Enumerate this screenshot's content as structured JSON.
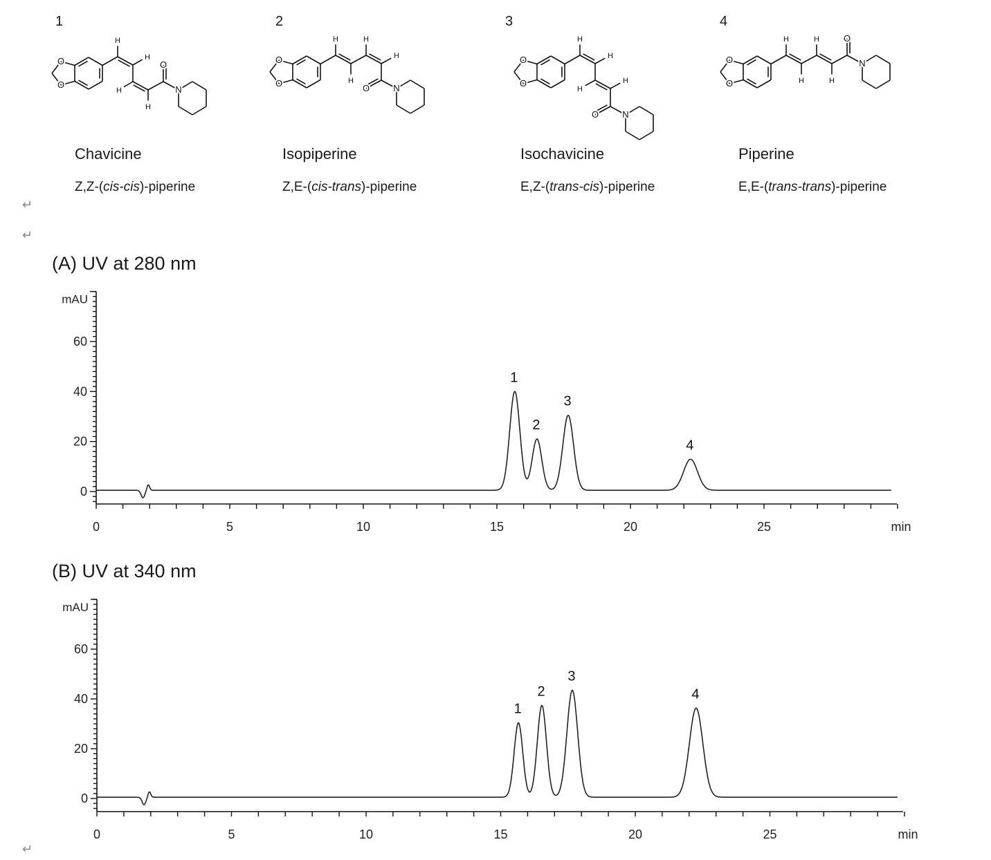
{
  "structure_atoms": {
    "oxygen": "O",
    "nitrogen": "N",
    "hydrogen": "H"
  },
  "compounds": [
    {
      "number": "1",
      "name": "Chavicine",
      "prefix": "Z,Z-(",
      "italic": "cis-cis",
      "suffix": ")-piperine"
    },
    {
      "number": "2",
      "name": "Isopiperine",
      "prefix": "Z,E-(",
      "italic": "cis-trans",
      "suffix": ")-piperine"
    },
    {
      "number": "3",
      "name": "Isochavicine",
      "prefix": "E,Z-(",
      "italic": "trans-cis",
      "suffix": ")-piperine"
    },
    {
      "number": "4",
      "name": "Piperine",
      "prefix": "E,E-(",
      "italic": "trans-trans",
      "suffix": ")-piperine"
    }
  ],
  "return_marks": [
    "↵",
    "↵",
    "↵"
  ],
  "chart_data": [
    {
      "type": "line",
      "title": "(A) UV at 280 nm",
      "ylabel": "mAU",
      "xlabel": "min",
      "xlim": [
        0,
        30
      ],
      "ylim": [
        -5,
        80
      ],
      "xticks": [
        "0",
        "5",
        "10",
        "15",
        "20",
        "25"
      ],
      "yticks": [
        "0",
        "20",
        "40",
        "60"
      ],
      "grid": false,
      "baseline": 0.5,
      "peaks": [
        {
          "label": "1",
          "rt": 15.67,
          "height": 39.5,
          "width": 0.19
        },
        {
          "label": "2",
          "rt": 16.5,
          "height": 20.5,
          "width": 0.18
        },
        {
          "label": "3",
          "rt": 17.67,
          "height": 30,
          "width": 0.2
        },
        {
          "label": "4",
          "rt": 22.25,
          "height": 12.4,
          "width": 0.26
        }
      ]
    },
    {
      "type": "line",
      "title": "(B) UV at 340 nm",
      "ylabel": "mAU",
      "xlabel": "min",
      "xlim": [
        0,
        30
      ],
      "ylim": [
        -5,
        80
      ],
      "xticks": [
        "0",
        "5",
        "10",
        "15",
        "20",
        "25"
      ],
      "yticks": [
        "0",
        "20",
        "40",
        "60"
      ],
      "grid": false,
      "baseline": 0.5,
      "peaks": [
        {
          "label": "1",
          "rt": 15.66,
          "height": 29.9,
          "width": 0.16
        },
        {
          "label": "2",
          "rt": 16.53,
          "height": 36.9,
          "width": 0.17
        },
        {
          "label": "3",
          "rt": 17.66,
          "height": 43,
          "width": 0.2
        },
        {
          "label": "4",
          "rt": 22.26,
          "height": 35.8,
          "width": 0.25
        }
      ]
    }
  ]
}
